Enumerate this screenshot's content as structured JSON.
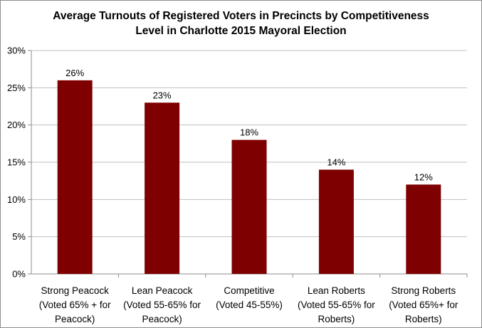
{
  "chart_data": {
    "type": "bar",
    "title_lines": [
      "Average Turnouts of Registered Voters in Precincts by Competitiveness",
      "Level in Charlotte 2015 Mayoral Election"
    ],
    "categories": [
      [
        "Strong Peacock",
        "(Voted 65% + for",
        "Peacock)"
      ],
      [
        "Lean Peacock",
        "(Voted 55-65% for",
        "Peacock)"
      ],
      [
        "Competitive",
        "(Voted 45-55%)"
      ],
      [
        "Lean Roberts",
        "(Voted 55-65% for",
        "Roberts)"
      ],
      [
        "Strong Roberts",
        "(Voted 65%+ for",
        "Roberts)"
      ]
    ],
    "values": [
      26,
      23,
      18,
      14,
      12
    ],
    "data_labels": [
      "26%",
      "23%",
      "18%",
      "14%",
      "12%"
    ],
    "yticks": [
      "0%",
      "5%",
      "10%",
      "15%",
      "20%",
      "25%",
      "30%"
    ],
    "ylim": [
      0,
      30
    ],
    "xlabel": "",
    "ylabel": "",
    "grid": true,
    "legend": "none",
    "colors": {
      "bar": "#7f0000",
      "grid": "#bfbfbf",
      "axis": "#8c8c8c"
    }
  }
}
